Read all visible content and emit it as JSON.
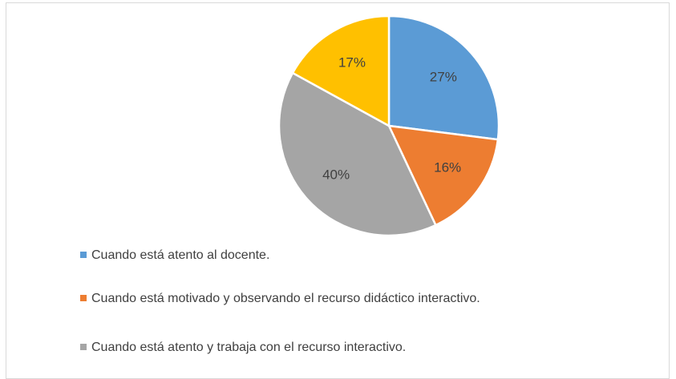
{
  "chart_data": {
    "type": "pie",
    "categories": [
      "Cuando está atento al docente.",
      "Cuando está motivado y observando el recurso didáctico interactivo.",
      "Cuando está atento y trabaja con el recurso interactivo.",
      null
    ],
    "values": [
      27,
      16,
      40,
      17
    ],
    "value_labels": [
      "27%",
      "16%",
      "40%",
      "17%"
    ],
    "colors": [
      "#5b9bd5",
      "#ed7d31",
      "#a5a5a5",
      "#ffc000"
    ],
    "legend": "bottom-left"
  }
}
